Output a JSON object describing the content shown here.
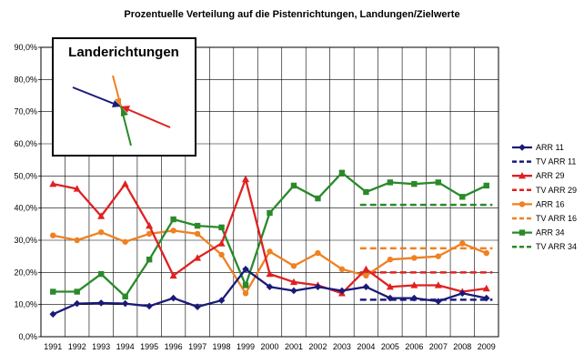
{
  "chart_data": {
    "type": "line",
    "title": "Prozentuelle Verteilung auf die Pistenrichtungen, Landungen/Zielwerte",
    "x": [
      "1991",
      "1992",
      "1993",
      "1994",
      "1995",
      "1996",
      "1997",
      "1998",
      "1999",
      "2000",
      "2001",
      "2002",
      "2003",
      "2004",
      "2005",
      "2006",
      "2007",
      "2008",
      "2009"
    ],
    "ylim": [
      0,
      90
    ],
    "yticks": [
      "0,0%",
      "10,0%",
      "20,0%",
      "30,0%",
      "40,0%",
      "50,0%",
      "60,0%",
      "70,0%",
      "80,0%",
      "90,0%"
    ],
    "grid": true,
    "legend_position": "right",
    "inset_title": "Landerichtungen",
    "series": [
      {
        "name": "ARR 11",
        "color": "#1a1a7a",
        "style": "solid",
        "marker": "diamond",
        "values": [
          7.0,
          10.3,
          10.5,
          10.3,
          9.5,
          12.0,
          9.3,
          11.3,
          21.0,
          15.5,
          14.3,
          15.5,
          14.3,
          15.5,
          12.0,
          12.0,
          11.0,
          13.5,
          12.0
        ]
      },
      {
        "name": "TV ARR 11",
        "color": "#1a1a7a",
        "style": "dashed",
        "x_range": [
          "2004",
          "2009"
        ],
        "value": 11.5
      },
      {
        "name": "ARR 29",
        "color": "#e02020",
        "style": "solid",
        "marker": "triangle",
        "values": [
          47.5,
          46.0,
          37.5,
          47.5,
          34.5,
          19.0,
          24.5,
          29.0,
          49.0,
          19.5,
          17.0,
          16.0,
          13.5,
          21.0,
          15.5,
          16.0,
          16.0,
          14.0,
          15.0
        ]
      },
      {
        "name": "TV ARR 29",
        "color": "#e02020",
        "style": "dashed",
        "x_range": [
          "2004",
          "2009"
        ],
        "value": 20.0
      },
      {
        "name": "ARR 16",
        "color": "#f08020",
        "style": "solid",
        "marker": "circle",
        "values": [
          31.5,
          30.0,
          32.5,
          29.5,
          32.0,
          33.0,
          32.0,
          25.5,
          13.5,
          26.5,
          22.0,
          26.0,
          21.0,
          19.0,
          24.0,
          24.5,
          25.0,
          29.0,
          26.0
        ]
      },
      {
        "name": "TV ARR 16",
        "color": "#f08020",
        "style": "dashed",
        "x_range": [
          "2004",
          "2009"
        ],
        "value": 27.5
      },
      {
        "name": "ARR 34",
        "color": "#2a8a2a",
        "style": "solid",
        "marker": "square",
        "values": [
          14.0,
          14.0,
          19.5,
          12.5,
          24.0,
          36.5,
          34.5,
          34.0,
          16.0,
          38.5,
          47.0,
          43.0,
          51.0,
          45.0,
          48.0,
          47.5,
          48.0,
          43.5,
          47.0
        ]
      },
      {
        "name": "TV ARR 34",
        "color": "#2a8a2a",
        "style": "dashed",
        "x_range": [
          "2004",
          "2009"
        ],
        "value": 41.0
      }
    ]
  }
}
